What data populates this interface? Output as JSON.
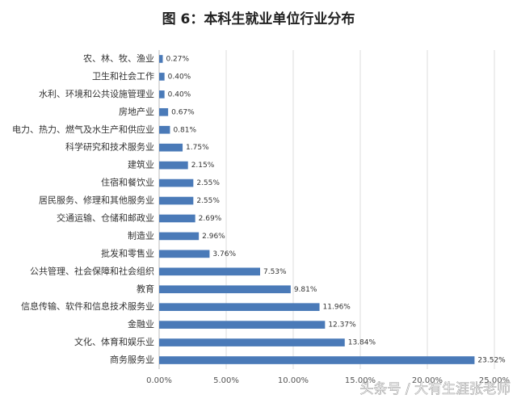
{
  "chart_data": {
    "type": "hbar",
    "title": "图 6：本科生就业单位行业分布",
    "categories": [
      "农、林、牧、渔业",
      "卫生和社会工作",
      "水利、环境和公共设施管理业",
      "房地产业",
      "电力、热力、燃气及水生产和供应业",
      "科学研究和技术服务业",
      "建筑业",
      "住宿和餐饮业",
      "居民服务、修理和其他服务业",
      "交通运输、仓储和邮政业",
      "制造业",
      "批发和零售业",
      "公共管理、社会保障和社会组织",
      "教育",
      "信息传输、软件和信息技术服务业",
      "金融业",
      "文化、体育和娱乐业",
      "商务服务业"
    ],
    "values": [
      0.27,
      0.4,
      0.4,
      0.67,
      0.81,
      1.75,
      2.15,
      2.55,
      2.55,
      2.69,
      2.96,
      3.76,
      7.53,
      9.81,
      11.96,
      12.37,
      13.84,
      23.52
    ],
    "value_labels": [
      "0.27%",
      "0.40%",
      "0.40%",
      "0.67%",
      "0.81%",
      "1.75%",
      "2.15%",
      "2.55%",
      "2.55%",
      "2.69%",
      "2.96%",
      "3.76%",
      "7.53%",
      "9.81%",
      "11.96%",
      "12.37%",
      "13.84%",
      "23.52%"
    ],
    "color": "#4a7ab8",
    "xlim": [
      0,
      25
    ],
    "xticks": [
      {
        "value": 0,
        "label": "0.00%"
      },
      {
        "value": 5,
        "label": "5.00%"
      },
      {
        "value": 10,
        "label": "10.00%"
      },
      {
        "value": 15,
        "label": "15.00%"
      },
      {
        "value": 20,
        "label": "20.00%"
      },
      {
        "value": 25,
        "label": "25.00%"
      }
    ],
    "grid": true,
    "watermark": "头条号 / 大有生涯张老师"
  }
}
